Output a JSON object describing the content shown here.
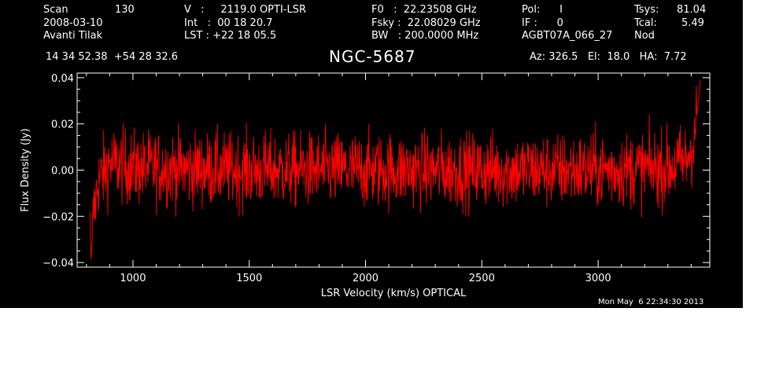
{
  "header": {
    "row1": [
      {
        "id": "scan-label",
        "text": "Scan"
      },
      {
        "id": "scan-value",
        "text": "130"
      },
      {
        "id": "velocity",
        "text": "V   :     2119.0 OPTI-LSR"
      },
      {
        "id": "f0",
        "text": "F0   :  22.23508 GHz"
      },
      {
        "id": "pol",
        "text": "Pol:      I"
      },
      {
        "id": "tsys-label",
        "text": "Tsys:"
      },
      {
        "id": "tsys-value",
        "text": "81.04"
      }
    ],
    "row2": [
      {
        "id": "date",
        "text": "2008-03-10"
      },
      {
        "id": "int",
        "text": "Int   :  00 18 20.7"
      },
      {
        "id": "fsky",
        "text": "Fsky :  22.08029 GHz"
      },
      {
        "id": "if",
        "text": "IF :      0"
      },
      {
        "id": "tcal-label",
        "text": "Tcal:"
      },
      {
        "id": "tcal-value",
        "text": "5.49"
      }
    ],
    "row3": [
      {
        "id": "observer",
        "text": "Avanti Tilak"
      },
      {
        "id": "lst",
        "text": "LST : +22 18 05.5"
      },
      {
        "id": "bw",
        "text": "BW   : 200.0000 MHz"
      },
      {
        "id": "project",
        "text": "AGBT07A_066_27"
      },
      {
        "id": "mode",
        "text": "Nod"
      }
    ],
    "coords": "14 34 52.38  +54 28 32.6",
    "source": "NGC-5687",
    "azelha": "Az: 326.5   El:  18.0   HA:  7.72"
  },
  "timestamp": "Mon May  6 22:34:30 2013",
  "colors": {
    "background": "#000000",
    "axes": "#ffffff",
    "trace": "#ff0000",
    "page": "#ffffff"
  },
  "chart_data": {
    "type": "line",
    "title": "NGC-5687",
    "xlabel": "LSR Velocity (km/s) OPTICAL",
    "ylabel": "Flux Density (Jy)",
    "xlim": [
      760,
      3480
    ],
    "ylim": [
      -0.042,
      0.042
    ],
    "xticks": [
      1000,
      1500,
      2000,
      2500,
      3000
    ],
    "xtick_labels": [
      "1000",
      "1500",
      "2000",
      "2500",
      "3000"
    ],
    "yticks": [
      -0.04,
      -0.02,
      0.0,
      0.02,
      0.04
    ],
    "ytick_labels": [
      "−0.04",
      "−0.02",
      "0.00",
      "0.02",
      "0.04"
    ],
    "grid": false,
    "series": [
      {
        "noise_rms_jy": 0.008,
        "x_range": [
          815,
          3440
        ],
        "points": [
          {
            "x": 815,
            "y": -0.018
          },
          {
            "x": 820,
            "y": -0.039
          },
          {
            "x": 830,
            "y": -0.02
          },
          {
            "x": 850,
            "y": -0.005
          },
          {
            "x": 900,
            "y": 0.003
          },
          {
            "x": 1000,
            "y": 0.001
          },
          {
            "x": 1500,
            "y": 0.0
          },
          {
            "x": 2000,
            "y": 0.0
          },
          {
            "x": 2500,
            "y": 0.0
          },
          {
            "x": 3000,
            "y": 0.0
          },
          {
            "x": 3300,
            "y": 0.001
          },
          {
            "x": 3380,
            "y": 0.004
          },
          {
            "x": 3410,
            "y": 0.012
          },
          {
            "x": 3425,
            "y": 0.025
          },
          {
            "x": 3440,
            "y": 0.039
          }
        ]
      }
    ]
  }
}
